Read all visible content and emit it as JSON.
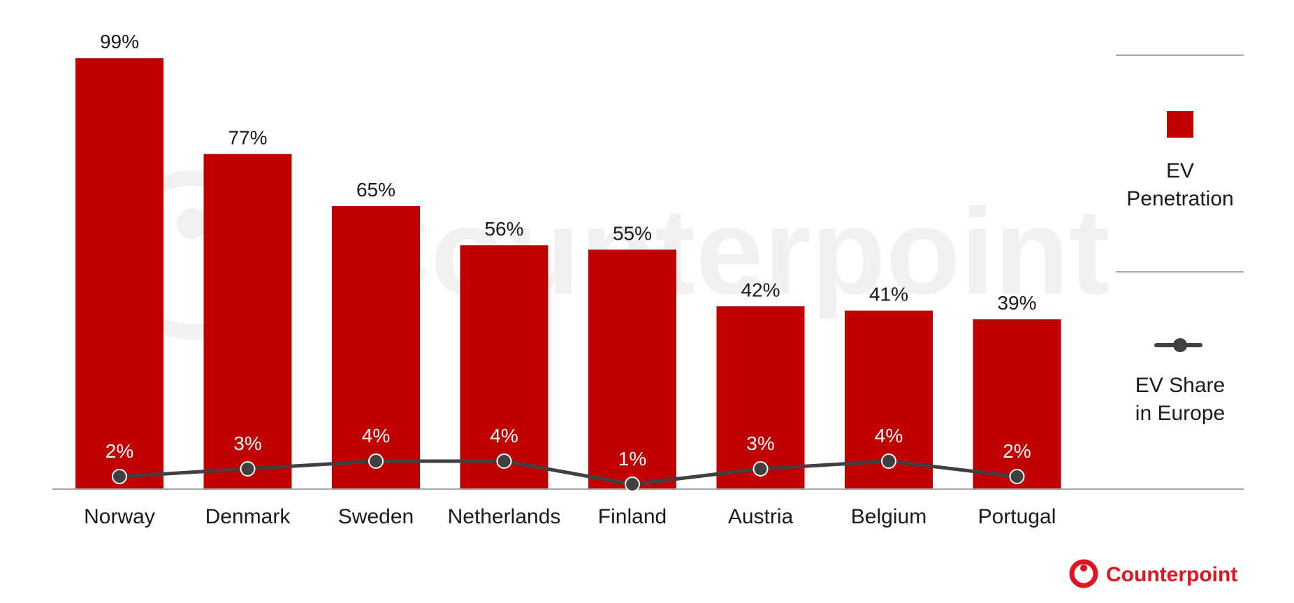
{
  "chart_data": {
    "type": "bar",
    "categories": [
      "Norway",
      "Denmark",
      "Sweden",
      "Netherlands",
      "Finland",
      "Austria",
      "Belgium",
      "Portugal"
    ],
    "series": [
      {
        "name": "EV Penetration",
        "type": "bar",
        "values": [
          99,
          77,
          65,
          56,
          55,
          42,
          41,
          39
        ],
        "labels": [
          "99%",
          "77%",
          "65%",
          "56%",
          "55%",
          "42%",
          "41%",
          "39%"
        ]
      },
      {
        "name": "EV Share in Europe",
        "type": "line",
        "values": [
          2,
          3,
          4,
          4,
          1,
          3,
          4,
          2
        ],
        "labels": [
          "2%",
          "3%",
          "4%",
          "4%",
          "1%",
          "3%",
          "4%",
          "2%"
        ]
      }
    ],
    "ylim": [
      0,
      100
    ],
    "grid": false,
    "legend": {
      "position": "right",
      "items": [
        {
          "line1": "EV",
          "line2": "Penetration"
        },
        {
          "line1": "EV Share",
          "line2": "in Europe"
        }
      ]
    }
  },
  "colors": {
    "bar": "#c00000",
    "line": "#404040",
    "marker_stroke": "#ffffff",
    "axis": "#a6a6a6",
    "brand": "#e0141e"
  },
  "watermark": {
    "text": "Counterpoint"
  },
  "brand": {
    "text": "Counterpoint",
    "icon": "counterpoint-logo-icon"
  }
}
